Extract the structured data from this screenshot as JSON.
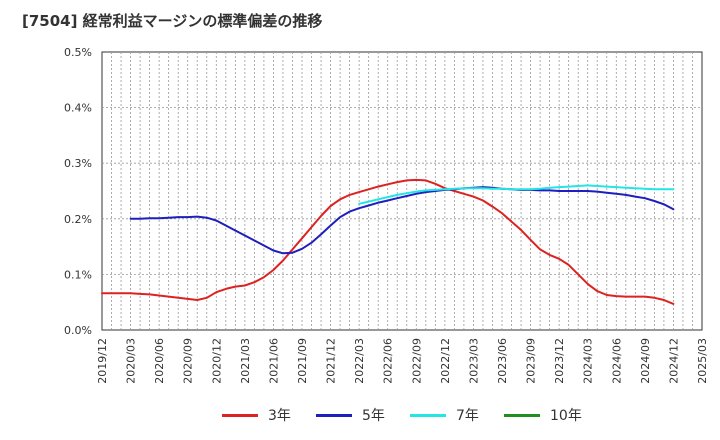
{
  "title": "[7504]  経常利益マージンの標準偏差の推移",
  "chart_data": {
    "type": "line",
    "title": "[7504]  経常利益マージンの標準偏差の推移",
    "xlabel": "",
    "ylabel": "",
    "x_ticks": [
      "2019/12",
      "2020/03",
      "2020/06",
      "2020/09",
      "2020/12",
      "2021/03",
      "2021/06",
      "2021/09",
      "2021/12",
      "2022/03",
      "2022/06",
      "2022/09",
      "2022/12",
      "2023/03",
      "2023/06",
      "2023/09",
      "2023/12",
      "2024/03",
      "2024/06",
      "2024/09",
      "2024/12",
      "2025/03"
    ],
    "y_ticks": [
      "0.0%",
      "0.1%",
      "0.2%",
      "0.3%",
      "0.4%",
      "0.5%"
    ],
    "ylim": [
      0,
      0.5
    ],
    "y_unit": "%",
    "grid": true,
    "legend_position": "bottom",
    "series": [
      {
        "name": "3年",
        "color": "#dd2222",
        "x": [
          "2019/12",
          "2020/01",
          "2020/02",
          "2020/03",
          "2020/04",
          "2020/05",
          "2020/06",
          "2020/07",
          "2020/08",
          "2020/09",
          "2020/10",
          "2020/11",
          "2020/12",
          "2021/01",
          "2021/02",
          "2021/03",
          "2021/04",
          "2021/05",
          "2021/06",
          "2021/07",
          "2021/08",
          "2021/09",
          "2021/10",
          "2021/11",
          "2021/12",
          "2022/01",
          "2022/02",
          "2022/03",
          "2022/04",
          "2022/05",
          "2022/06",
          "2022/07",
          "2022/08",
          "2022/09",
          "2022/10",
          "2022/11",
          "2022/12",
          "2023/01",
          "2023/02",
          "2023/03",
          "2023/04",
          "2023/05",
          "2023/06",
          "2023/07",
          "2023/08",
          "2023/09",
          "2023/10",
          "2023/11",
          "2023/12",
          "2024/01",
          "2024/02",
          "2024/03",
          "2024/04",
          "2024/05",
          "2024/06",
          "2024/07",
          "2024/08",
          "2024/09",
          "2024/10",
          "2024/11",
          "2024/12"
        ],
        "values": [
          0.066,
          0.066,
          0.066,
          0.066,
          0.065,
          0.064,
          0.062,
          0.06,
          0.058,
          0.056,
          0.054,
          0.058,
          0.068,
          0.074,
          0.078,
          0.08,
          0.086,
          0.095,
          0.108,
          0.125,
          0.145,
          0.165,
          0.185,
          0.205,
          0.223,
          0.235,
          0.243,
          0.248,
          0.253,
          0.258,
          0.262,
          0.266,
          0.269,
          0.27,
          0.269,
          0.263,
          0.255,
          0.25,
          0.245,
          0.24,
          0.233,
          0.222,
          0.21,
          0.195,
          0.18,
          0.162,
          0.145,
          0.135,
          0.128,
          0.117,
          0.1,
          0.083,
          0.07,
          0.063,
          0.061,
          0.06,
          0.06,
          0.06,
          0.058,
          0.054,
          0.047
        ]
      },
      {
        "name": "5年",
        "color": "#1f1fbf",
        "x": [
          "2020/03",
          "2020/04",
          "2020/05",
          "2020/06",
          "2020/07",
          "2020/08",
          "2020/09",
          "2020/10",
          "2020/11",
          "2020/12",
          "2021/01",
          "2021/02",
          "2021/03",
          "2021/04",
          "2021/05",
          "2021/06",
          "2021/07",
          "2021/08",
          "2021/09",
          "2021/10",
          "2021/11",
          "2021/12",
          "2022/01",
          "2022/02",
          "2022/03",
          "2022/04",
          "2022/05",
          "2022/06",
          "2022/07",
          "2022/08",
          "2022/09",
          "2022/10",
          "2022/11",
          "2022/12",
          "2023/01",
          "2023/02",
          "2023/03",
          "2023/04",
          "2023/05",
          "2023/06",
          "2023/07",
          "2023/08",
          "2023/09",
          "2023/10",
          "2023/11",
          "2023/12",
          "2024/01",
          "2024/02",
          "2024/03",
          "2024/04",
          "2024/05",
          "2024/06",
          "2024/07",
          "2024/08",
          "2024/09",
          "2024/10",
          "2024/11",
          "2024/12"
        ],
        "values": [
          0.2,
          0.2,
          0.201,
          0.201,
          0.202,
          0.203,
          0.203,
          0.204,
          0.202,
          0.197,
          0.188,
          0.179,
          0.17,
          0.161,
          0.152,
          0.143,
          0.138,
          0.139,
          0.146,
          0.157,
          0.172,
          0.188,
          0.203,
          0.213,
          0.219,
          0.224,
          0.229,
          0.233,
          0.237,
          0.241,
          0.245,
          0.248,
          0.25,
          0.252,
          0.253,
          0.255,
          0.256,
          0.257,
          0.256,
          0.254,
          0.253,
          0.252,
          0.252,
          0.251,
          0.251,
          0.25,
          0.25,
          0.25,
          0.25,
          0.249,
          0.247,
          0.245,
          0.243,
          0.24,
          0.237,
          0.232,
          0.226,
          0.217
        ]
      },
      {
        "name": "7年",
        "color": "#22e5e5",
        "x": [
          "2022/03",
          "2022/04",
          "2022/05",
          "2022/06",
          "2022/07",
          "2022/08",
          "2022/09",
          "2022/10",
          "2022/11",
          "2022/12",
          "2023/01",
          "2023/02",
          "2023/03",
          "2023/04",
          "2023/05",
          "2023/06",
          "2023/07",
          "2023/08",
          "2023/09",
          "2023/10",
          "2023/11",
          "2023/12",
          "2024/01",
          "2024/02",
          "2024/03",
          "2024/04",
          "2024/05",
          "2024/06",
          "2024/07",
          "2024/08",
          "2024/09",
          "2024/10",
          "2024/11",
          "2024/12"
        ],
        "values": [
          0.227,
          0.231,
          0.235,
          0.239,
          0.243,
          0.246,
          0.249,
          0.251,
          0.252,
          0.253,
          0.254,
          0.255,
          0.255,
          0.255,
          0.254,
          0.254,
          0.253,
          0.253,
          0.253,
          0.254,
          0.256,
          0.257,
          0.258,
          0.259,
          0.26,
          0.259,
          0.258,
          0.257,
          0.256,
          0.255,
          0.254,
          0.253,
          0.253,
          0.253
        ]
      },
      {
        "name": "10年",
        "color": "#1f8f1f",
        "x": [],
        "values": []
      }
    ]
  }
}
